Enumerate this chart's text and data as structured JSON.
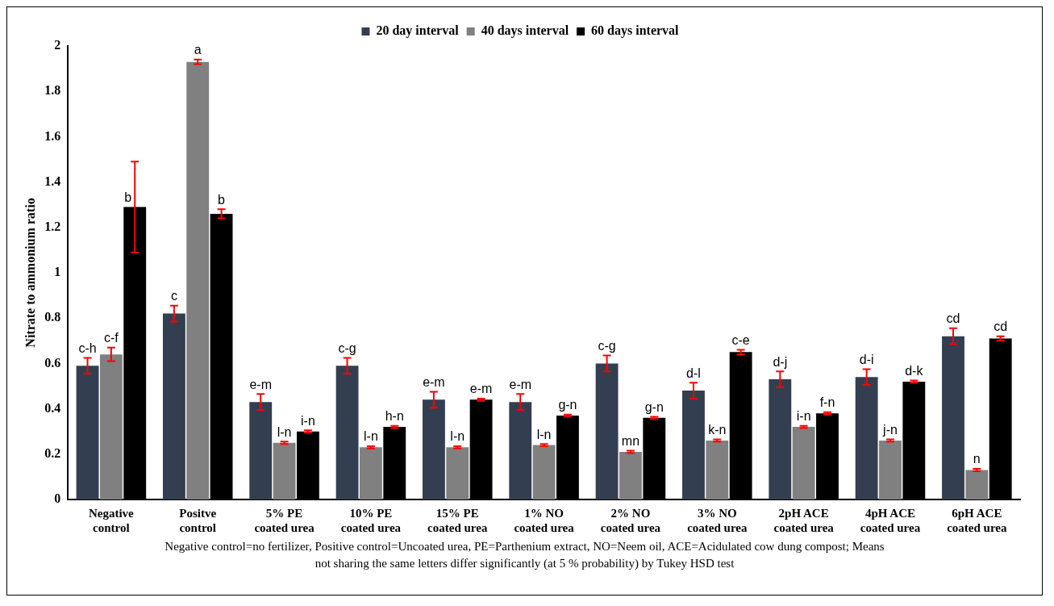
{
  "chart_data": {
    "type": "bar",
    "ylabel": "Nitrate to ammonium ratio",
    "legend": "top",
    "categories": [
      "Negative control",
      "Positve control",
      "5% PE coated urea",
      "10% PE coated urea",
      "15% PE coated urea",
      "1% NO coated urea",
      "2% NO coated urea",
      "3% NO coated urea",
      "2pH ACE coated urea",
      "4pH ACE coated urea",
      "6pH ACE coated urea"
    ],
    "series": [
      {
        "name": "20 day interval",
        "color": "#333f50",
        "values": [
          0.59,
          0.82,
          0.43,
          0.59,
          0.44,
          0.43,
          0.6,
          0.48,
          0.53,
          0.54,
          0.72
        ],
        "errors": [
          0.035,
          0.035,
          0.035,
          0.035,
          0.035,
          0.035,
          0.035,
          0.035,
          0.035,
          0.035,
          0.035
        ],
        "value_labels": [
          "c-h",
          "c",
          "e-m",
          "c-g",
          "e-m",
          "e-m",
          "c-g",
          "d-l",
          "d-j",
          "d-i",
          "cd"
        ]
      },
      {
        "name": "40 days interval",
        "color": "#808080",
        "values": [
          0.64,
          1.93,
          0.25,
          0.23,
          0.23,
          0.24,
          0.21,
          0.26,
          0.32,
          0.26,
          0.13
        ],
        "errors": [
          0.03,
          0.01,
          0.005,
          0.005,
          0.005,
          0.005,
          0.005,
          0.005,
          0.005,
          0.005,
          0.005
        ],
        "value_labels": [
          "c-f",
          "a",
          "l-n",
          "l-n",
          "l-n",
          "l-n",
          "mn",
          "k-n",
          "i-n",
          "j-n",
          "n"
        ]
      },
      {
        "name": "60 days interval",
        "color": "#000000",
        "values": [
          1.29,
          1.26,
          0.3,
          0.32,
          0.44,
          0.37,
          0.36,
          0.65,
          0.38,
          0.52,
          0.71
        ],
        "errors": [
          0.2,
          0.02,
          0.005,
          0.005,
          0.005,
          0.005,
          0.005,
          0.01,
          0.005,
          0.005,
          0.01
        ],
        "value_labels": [
          "b",
          "b",
          "i-n",
          "h-n",
          "e-m",
          "g-n",
          "g-n",
          "c-e",
          "f-n",
          "d-k",
          "cd"
        ]
      }
    ],
    "ylim": [
      0,
      2
    ],
    "yticks": [
      0,
      0.2,
      0.4,
      0.6,
      0.8,
      1,
      1.2,
      1.4,
      1.6,
      1.8,
      2
    ],
    "grid": false,
    "annotations": [
      "Negative control=no fertilizer, Positive control=Uncoated urea, PE=Parthenium extract, NO=Neem oil, ACE=Acidulated cow dung compost; Means not sharing the same letters differ significantly (at 5 % probability) by Tukey HSD test"
    ]
  }
}
